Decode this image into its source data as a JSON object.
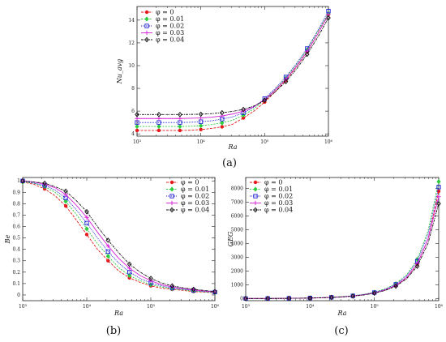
{
  "chart_data": [
    {
      "type": "line",
      "caption": "(a)",
      "xlabel": "Ra",
      "ylabel": "Nu_avg",
      "xscale": "log",
      "xlim": [
        1000,
        1000000
      ],
      "ylim": [
        3.8,
        15.2
      ],
      "xticks": [
        "10³",
        "10⁴",
        "10⁵",
        "10⁶"
      ],
      "yticks": [
        "4",
        "6",
        "8",
        "10",
        "12",
        "14"
      ],
      "legend": "top-left",
      "x": [
        1000,
        1500,
        2200,
        3200,
        4700,
        6800,
        10000,
        14700,
        21500,
        31600,
        46400,
        68100,
        100000,
        146800,
        215400,
        316200,
        464200,
        681300,
        1000000
      ],
      "series": [
        {
          "name": "φ = 0",
          "color": "#e41a1c",
          "marker": "dot",
          "values": [
            4.3,
            4.3,
            4.3,
            4.3,
            4.3,
            4.32,
            4.38,
            4.48,
            4.62,
            4.85,
            5.4,
            6.0,
            6.8,
            7.7,
            8.7,
            9.9,
            11.2,
            12.8,
            14.5
          ]
        },
        {
          "name": "φ = 0.01",
          "color": "#2ecc40",
          "marker": "diamond",
          "values": [
            4.65,
            4.65,
            4.65,
            4.65,
            4.65,
            4.67,
            4.72,
            4.82,
            4.97,
            5.2,
            5.65,
            6.2,
            7.0,
            7.9,
            8.9,
            10.1,
            11.4,
            13.0,
            14.6
          ]
        },
        {
          "name": "φ = 0.02",
          "color": "#1f1fd6",
          "marker": "square",
          "values": [
            5.0,
            5.0,
            5.0,
            5.0,
            5.0,
            5.02,
            5.07,
            5.15,
            5.3,
            5.5,
            5.85,
            6.35,
            7.1,
            8.0,
            9.0,
            10.2,
            11.5,
            13.1,
            14.8
          ]
        },
        {
          "name": "φ = 0.03",
          "color": "#d61fd6",
          "marker": "plus",
          "values": [
            5.35,
            5.35,
            5.35,
            5.35,
            5.35,
            5.37,
            5.4,
            5.47,
            5.58,
            5.75,
            6.0,
            6.4,
            7.0,
            7.85,
            8.8,
            9.95,
            11.25,
            12.8,
            14.5
          ]
        },
        {
          "name": "φ = 0.04",
          "color": "#111111",
          "marker": "diamond-open",
          "values": [
            5.7,
            5.7,
            5.7,
            5.7,
            5.7,
            5.71,
            5.73,
            5.78,
            5.86,
            5.98,
            6.15,
            6.45,
            6.95,
            7.7,
            8.6,
            9.7,
            11.0,
            12.5,
            14.2
          ]
        }
      ]
    },
    {
      "type": "line",
      "caption": "(b)",
      "xlabel": "Ra",
      "ylabel": "Be",
      "xscale": "log",
      "xlim": [
        1000,
        1000000
      ],
      "ylim": [
        -0.05,
        1.03
      ],
      "xticks": [
        "10³",
        "10⁴",
        "10⁵",
        "10⁶"
      ],
      "yticks": [
        "0",
        "0.1",
        "0.2",
        "0.3",
        "0.4",
        "0.5",
        "0.6",
        "0.7",
        "0.8",
        "0.9",
        "1"
      ],
      "legend": "top-right",
      "x": [
        1000,
        1500,
        2200,
        3200,
        4700,
        6800,
        10000,
        14700,
        21500,
        31600,
        46400,
        68100,
        100000,
        146800,
        215400,
        316200,
        464200,
        681300,
        1000000
      ],
      "series": [
        {
          "name": "φ = 0",
          "color": "#e41a1c",
          "marker": "dot",
          "values": [
            0.99,
            0.97,
            0.93,
            0.87,
            0.78,
            0.66,
            0.53,
            0.4,
            0.3,
            0.21,
            0.15,
            0.11,
            0.08,
            0.06,
            0.05,
            0.04,
            0.03,
            0.025,
            0.02
          ]
        },
        {
          "name": "φ = 0.01",
          "color": "#2ecc40",
          "marker": "diamond",
          "values": [
            0.99,
            0.98,
            0.95,
            0.9,
            0.82,
            0.71,
            0.58,
            0.45,
            0.34,
            0.24,
            0.17,
            0.125,
            0.09,
            0.07,
            0.055,
            0.045,
            0.035,
            0.028,
            0.022
          ]
        },
        {
          "name": "φ = 0.02",
          "color": "#1f1fd6",
          "marker": "square",
          "values": [
            1.0,
            0.98,
            0.96,
            0.92,
            0.85,
            0.75,
            0.63,
            0.5,
            0.38,
            0.28,
            0.2,
            0.145,
            0.105,
            0.08,
            0.06,
            0.05,
            0.04,
            0.03,
            0.025
          ]
        },
        {
          "name": "φ = 0.03",
          "color": "#d61fd6",
          "marker": "plus",
          "values": [
            1.0,
            0.99,
            0.97,
            0.94,
            0.88,
            0.79,
            0.68,
            0.55,
            0.43,
            0.32,
            0.235,
            0.17,
            0.125,
            0.09,
            0.07,
            0.055,
            0.045,
            0.035,
            0.028
          ]
        },
        {
          "name": "φ = 0.04",
          "color": "#111111",
          "marker": "diamond-open",
          "values": [
            1.0,
            0.99,
            0.98,
            0.95,
            0.91,
            0.83,
            0.73,
            0.6,
            0.48,
            0.37,
            0.27,
            0.2,
            0.145,
            0.105,
            0.08,
            0.063,
            0.05,
            0.04,
            0.03
          ]
        }
      ]
    },
    {
      "type": "line",
      "caption": "(c)",
      "xlabel": "Ra",
      "ylabel": "GEG",
      "xscale": "log",
      "xlim": [
        1000,
        1000000
      ],
      "ylim": [
        -150,
        8800
      ],
      "xticks": [
        "10³",
        "10⁴",
        "10⁵",
        "10⁶"
      ],
      "yticks": [
        "0",
        "1000",
        "2000",
        "3000",
        "4000",
        "5000",
        "6000",
        "7000",
        "8000"
      ],
      "legend": "top-left",
      "x": [
        1000,
        1500,
        2200,
        3200,
        4700,
        6800,
        10000,
        14700,
        21500,
        31600,
        46400,
        68100,
        100000,
        146800,
        215400,
        316200,
        464200,
        681300,
        1000000
      ],
      "series": [
        {
          "name": "φ = 0",
          "color": "#e41a1c",
          "marker": "dot",
          "values": [
            5,
            7,
            10,
            14,
            20,
            29,
            42,
            62,
            90,
            130,
            190,
            280,
            410,
            620,
            950,
            1500,
            2500,
            4300,
            7800
          ]
        },
        {
          "name": "φ = 0.01",
          "color": "#2ecc40",
          "marker": "diamond",
          "values": [
            5,
            7,
            10,
            15,
            21,
            31,
            45,
            66,
            97,
            142,
            210,
            310,
            460,
            700,
            1080,
            1720,
            2850,
            4900,
            8500
          ]
        },
        {
          "name": "φ = 0.02",
          "color": "#1f1fd6",
          "marker": "square",
          "values": [
            5,
            7,
            10,
            14,
            20,
            29,
            43,
            63,
            93,
            135,
            200,
            295,
            440,
            670,
            1030,
            1640,
            2720,
            4650,
            8100
          ]
        },
        {
          "name": "φ = 0.03",
          "color": "#d61fd6",
          "marker": "plus",
          "values": [
            5,
            7,
            9,
            13,
            19,
            28,
            41,
            60,
            88,
            128,
            190,
            280,
            415,
            630,
            965,
            1530,
            2530,
            4300,
            7400
          ]
        },
        {
          "name": "φ = 0.04",
          "color": "#111111",
          "marker": "diamond-open",
          "values": [
            4,
            6,
            9,
            12,
            18,
            26,
            38,
            56,
            82,
            120,
            178,
            262,
            390,
            590,
            900,
            1430,
            2350,
            4000,
            6900
          ]
        }
      ]
    }
  ]
}
